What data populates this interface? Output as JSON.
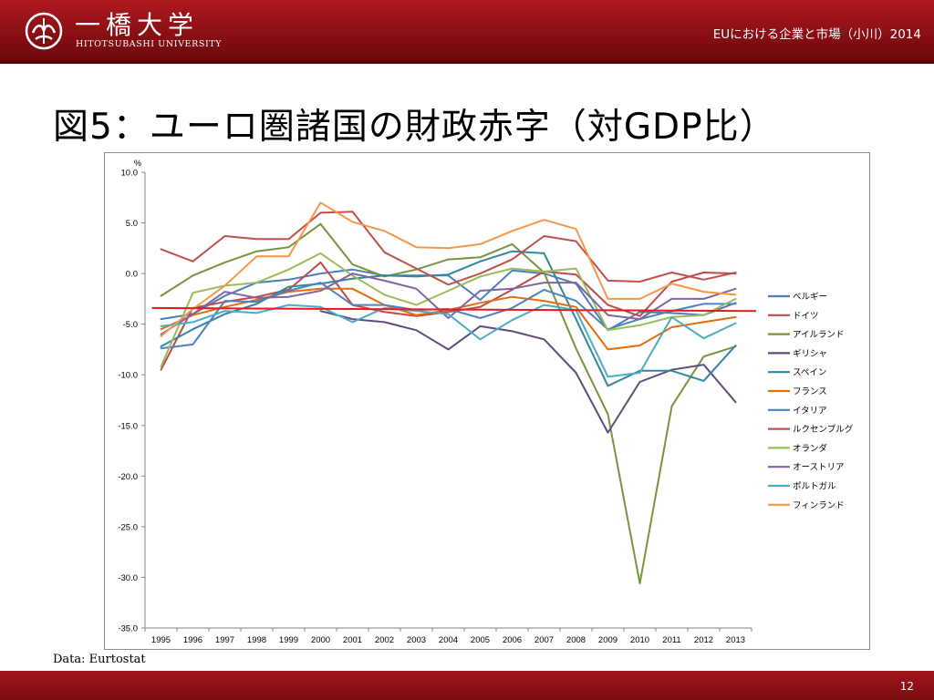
{
  "header": {
    "logo_jp": "一橋大学",
    "logo_en": "HITOTSUBASHI UNIVERSITY",
    "course": "EUにおける企業と市場（小川）2014"
  },
  "slide": {
    "title": "図5：ユーロ圏諸国の財政赤字（対GDP比）",
    "footnote": "Data: Eurtostat",
    "page_number": "12"
  },
  "colors": {
    "header": "#8a0f14",
    "reference_line": "#e8191f"
  },
  "chart_data": {
    "type": "line",
    "title": "",
    "xlabel": "",
    "ylabel": "%",
    "ylim": [
      -35,
      10
    ],
    "yticks": [
      "10.0",
      "5.0",
      "0.0",
      "-5.0",
      "-10.0",
      "-15.0",
      "-20.0",
      "-25.0",
      "-30.0",
      "-35.0"
    ],
    "ytick_values": [
      10,
      5,
      0,
      -5,
      -10,
      -15,
      -20,
      -25,
      -30,
      -35
    ],
    "categories": [
      "1995",
      "1996",
      "1997",
      "1998",
      "1999",
      "2000",
      "2001",
      "2002",
      "2003",
      "2004",
      "2005",
      "2006",
      "2007",
      "2008",
      "2009",
      "2010",
      "2011",
      "2012",
      "2013"
    ],
    "grid": false,
    "legend_position": "right",
    "reference_line": {
      "y_start": -3.4,
      "y_end": -3.7
    },
    "series": [
      {
        "name": "ベルギー",
        "color": "#4a7ebb",
        "values": [
          -4.5,
          -4.0,
          -2.2,
          -0.9,
          -0.6,
          0.0,
          0.4,
          -0.2,
          -0.2,
          -0.2,
          -2.6,
          0.3,
          0.0,
          -1.0,
          -5.6,
          -3.8,
          -3.9,
          -4.1,
          -2.9
        ]
      },
      {
        "name": "ドイツ",
        "color": "#be4b48",
        "values": [
          -9.5,
          -3.4,
          -2.8,
          -2.3,
          -1.6,
          1.1,
          -3.1,
          -3.8,
          -4.2,
          -3.8,
          -3.3,
          -1.6,
          0.2,
          -0.1,
          -3.1,
          -4.2,
          -0.8,
          0.1,
          0.0
        ]
      },
      {
        "name": "アイルランド",
        "color": "#77933c",
        "values": [
          -2.2,
          -0.2,
          1.1,
          2.2,
          2.6,
          4.9,
          0.9,
          -0.3,
          0.4,
          1.4,
          1.6,
          2.9,
          0.1,
          -7.4,
          -13.9,
          -30.6,
          -13.1,
          -8.2,
          -7.2
        ]
      },
      {
        "name": "ギリシャ",
        "color": "#604a7b",
        "values": [
          null,
          null,
          null,
          null,
          null,
          -3.7,
          -4.5,
          -4.8,
          -5.6,
          -7.5,
          -5.2,
          -5.7,
          -6.5,
          -9.8,
          -15.7,
          -10.7,
          -9.5,
          -9.0,
          -12.7
        ]
      },
      {
        "name": "スペイン",
        "color": "#31859c",
        "values": [
          -7.2,
          -5.5,
          -4.0,
          -3.0,
          -1.3,
          -1.0,
          -0.5,
          -0.2,
          -0.3,
          -0.1,
          1.2,
          2.2,
          2.0,
          -4.5,
          -11.1,
          -9.6,
          -9.6,
          -10.6,
          -7.1
        ]
      },
      {
        "name": "フランス",
        "color": "#e46c0a",
        "values": [
          -5.5,
          -4.1,
          -3.3,
          -2.6,
          -1.8,
          -1.5,
          -1.5,
          -3.1,
          -4.1,
          -3.6,
          -2.9,
          -2.3,
          -2.7,
          -3.3,
          -7.5,
          -7.1,
          -5.3,
          -4.8,
          -4.3
        ]
      },
      {
        "name": "イタリア",
        "color": "#4f81bd",
        "values": [
          -7.4,
          -7.0,
          -2.7,
          -2.8,
          -1.7,
          -0.9,
          -3.1,
          -3.1,
          -3.6,
          -3.5,
          -4.4,
          -3.4,
          -1.6,
          -2.7,
          -5.5,
          -4.5,
          -3.7,
          -3.0,
          -3.0
        ]
      },
      {
        "name": "ルクセンブルグ",
        "color": "#c0504d",
        "values": [
          2.4,
          1.2,
          3.7,
          3.4,
          3.4,
          6.0,
          6.1,
          2.1,
          0.5,
          -1.1,
          0.0,
          1.4,
          3.7,
          3.2,
          -0.7,
          -0.8,
          0.1,
          -0.6,
          0.1
        ]
      },
      {
        "name": "オランダ",
        "color": "#9bbb59",
        "values": [
          -9.2,
          -1.9,
          -1.2,
          -0.9,
          0.4,
          2.0,
          -0.2,
          -2.1,
          -3.1,
          -1.7,
          -0.3,
          0.5,
          0.2,
          0.5,
          -5.6,
          -5.1,
          -4.3,
          -4.1,
          -2.5
        ]
      },
      {
        "name": "オーストリア",
        "color": "#8064a2",
        "values": [
          -6.0,
          -4.0,
          -1.8,
          -2.4,
          -2.3,
          -1.7,
          0.0,
          -0.7,
          -1.5,
          -4.4,
          -1.7,
          -1.5,
          -0.9,
          -0.9,
          -4.1,
          -4.5,
          -2.5,
          -2.5,
          -1.5
        ]
      },
      {
        "name": "ポルトガル",
        "color": "#4bacc6",
        "values": [
          -5.2,
          -4.8,
          -3.7,
          -3.9,
          -3.1,
          -3.3,
          -4.8,
          -3.4,
          -3.7,
          -4.0,
          -6.5,
          -4.6,
          -3.1,
          -3.6,
          -10.2,
          -9.8,
          -4.3,
          -6.4,
          -4.9
        ]
      },
      {
        "name": "フィンランド",
        "color": "#f79646",
        "values": [
          -6.2,
          -3.5,
          -1.2,
          1.7,
          1.7,
          7.0,
          5.1,
          4.2,
          2.6,
          2.5,
          2.9,
          4.2,
          5.3,
          4.4,
          -2.5,
          -2.5,
          -1.0,
          -1.8,
          -2.1
        ]
      }
    ]
  }
}
